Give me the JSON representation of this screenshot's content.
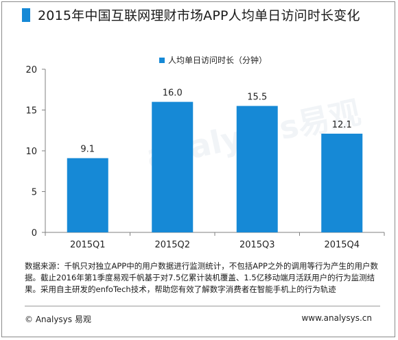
{
  "title": "2015年中国互联网理财市场APP人均单日访问时长变化",
  "legend_label": "人均单日访问时长（分钟）",
  "source_text": "数据来源：千帆只对独立APP中的用户数据进行监测统计，不包括APP之外的调用等行为产生的用户数据。截止2016年第1季度易观千帆基于对7.5亿累计装机覆盖、1.5亿移动端月活跃用户的行为监测结果。采用自主研发的enfoTech技术，帮助您有效了解数字消费者在智能手机上的行为轨迹",
  "footer": {
    "brand": "© Analysys 易观",
    "url": "www.analysys.cn"
  },
  "watermark": "analysys易观",
  "colors": {
    "bar": "#1689d6",
    "accent": "#1689d6"
  },
  "chart_data": {
    "type": "bar",
    "title": "2015年中国互联网理财市场APP人均单日访问时长变化",
    "categories": [
      "2015Q1",
      "2015Q2",
      "2015Q3",
      "2015Q4"
    ],
    "series": [
      {
        "name": "人均单日访问时长（分钟）",
        "values": [
          9.1,
          16.0,
          15.5,
          12.1
        ]
      }
    ],
    "data_labels": [
      "9.1",
      "16.0",
      "15.5",
      "12.1"
    ],
    "ylim": [
      0,
      20
    ],
    "yticks": [
      0,
      5,
      10,
      15,
      20
    ],
    "grid": false,
    "legend_position": "top-center"
  }
}
